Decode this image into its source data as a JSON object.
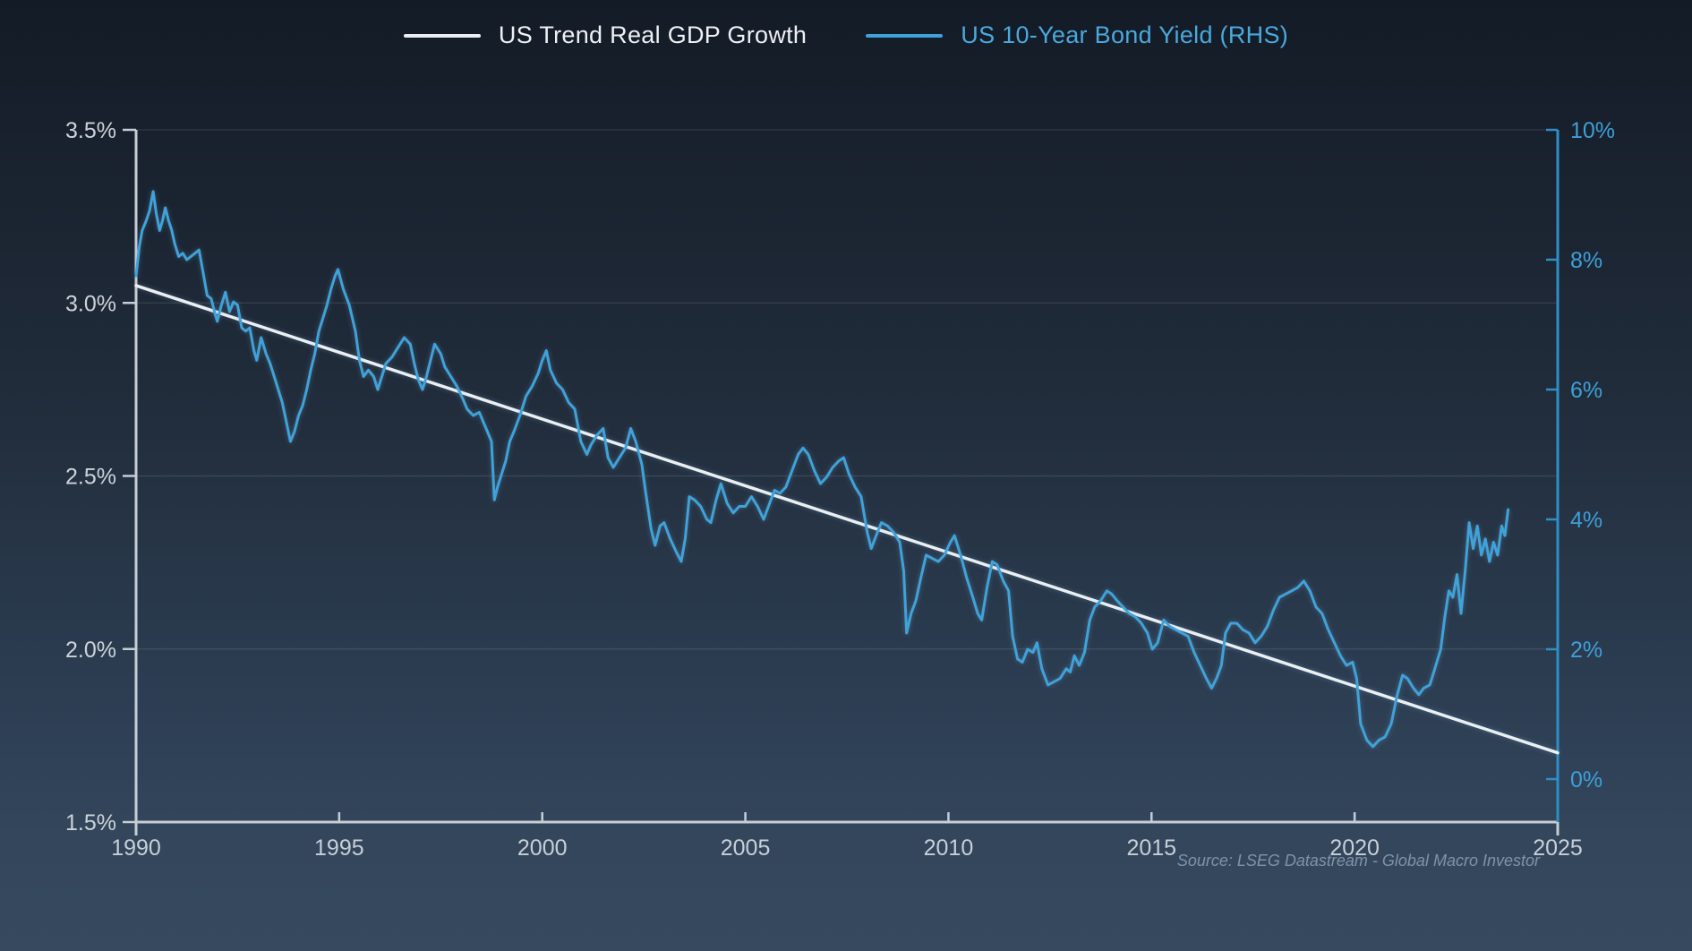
{
  "legend": {
    "items": [
      {
        "label": "US Trend Real GDP Growth",
        "color": "#eceff2",
        "text_color": "#eef1f4"
      },
      {
        "label": "US 10-Year Bond Yield (RHS)",
        "color": "#3fa2d9",
        "text_color": "#4aa8dd"
      }
    ]
  },
  "source_note": "Source: LSEG Datastream - Global Macro Investor",
  "colors": {
    "axis": "#c6cdd5",
    "right_axis": "#2e8ec6",
    "grid": "rgba(205,220,235,0.14)",
    "left_label": "#cdd3da",
    "x_label": "#c8cfd6",
    "right_label": "#3f9fd8",
    "source": "#7e93a9"
  },
  "chart_data": {
    "type": "line",
    "title": "",
    "xlabel": "",
    "ylabel_left": "",
    "ylabel_right": "",
    "grid": "horizontal",
    "legend_position": "top-center",
    "x_axis": {
      "range": [
        1990,
        2025
      ],
      "ticks": [
        1990,
        1995,
        2000,
        2005,
        2010,
        2015,
        2020,
        2025
      ]
    },
    "left_axis": {
      "range": [
        1.5,
        3.5
      ],
      "tick_values": [
        3.5,
        3.0,
        2.5,
        2.0,
        1.5
      ],
      "tick_labels": [
        "3.5%",
        "3.0%",
        "2.5%",
        "2.0%",
        "1.5%"
      ]
    },
    "right_axis": {
      "range": [
        0,
        10
      ],
      "tick_values": [
        10,
        8,
        6,
        4,
        2,
        0
      ],
      "tick_labels": [
        "10%",
        "8%",
        "6%",
        "4%",
        "2%",
        "0%"
      ]
    },
    "series": [
      {
        "name": "US Trend Real GDP Growth",
        "axis": "left",
        "color": "#eceff2",
        "width": 3.5,
        "points": [
          [
            1990,
            3.05
          ],
          [
            2025,
            1.7
          ]
        ]
      },
      {
        "name": "US 10-Year Bond Yield (RHS)",
        "axis": "right",
        "color": "#3fa2d9",
        "width": 3,
        "points": [
          [
            1990.0,
            7.75
          ],
          [
            1990.08,
            8.2
          ],
          [
            1990.15,
            8.45
          ],
          [
            1990.25,
            8.6
          ],
          [
            1990.33,
            8.75
          ],
          [
            1990.42,
            9.05
          ],
          [
            1990.5,
            8.7
          ],
          [
            1990.58,
            8.45
          ],
          [
            1990.65,
            8.6
          ],
          [
            1990.72,
            8.8
          ],
          [
            1990.8,
            8.6
          ],
          [
            1990.88,
            8.45
          ],
          [
            1990.95,
            8.25
          ],
          [
            1991.05,
            8.05
          ],
          [
            1991.15,
            8.1
          ],
          [
            1991.25,
            8.0
          ],
          [
            1991.35,
            8.05
          ],
          [
            1991.45,
            8.1
          ],
          [
            1991.55,
            8.15
          ],
          [
            1991.65,
            7.8
          ],
          [
            1991.75,
            7.45
          ],
          [
            1991.85,
            7.4
          ],
          [
            1991.95,
            7.15
          ],
          [
            1992.0,
            7.05
          ],
          [
            1992.1,
            7.3
          ],
          [
            1992.2,
            7.5
          ],
          [
            1992.3,
            7.2
          ],
          [
            1992.4,
            7.35
          ],
          [
            1992.5,
            7.3
          ],
          [
            1992.6,
            6.95
          ],
          [
            1992.7,
            6.9
          ],
          [
            1992.8,
            6.95
          ],
          [
            1992.9,
            6.6
          ],
          [
            1992.97,
            6.45
          ],
          [
            1993.08,
            6.8
          ],
          [
            1993.2,
            6.55
          ],
          [
            1993.3,
            6.4
          ],
          [
            1993.4,
            6.2
          ],
          [
            1993.5,
            6.0
          ],
          [
            1993.6,
            5.8
          ],
          [
            1993.7,
            5.5
          ],
          [
            1993.8,
            5.2
          ],
          [
            1993.9,
            5.35
          ],
          [
            1994.0,
            5.6
          ],
          [
            1994.1,
            5.75
          ],
          [
            1994.2,
            6.0
          ],
          [
            1994.3,
            6.3
          ],
          [
            1994.4,
            6.55
          ],
          [
            1994.5,
            6.9
          ],
          [
            1994.6,
            7.1
          ],
          [
            1994.7,
            7.3
          ],
          [
            1994.8,
            7.55
          ],
          [
            1994.9,
            7.75
          ],
          [
            1994.97,
            7.85
          ],
          [
            1995.1,
            7.55
          ],
          [
            1995.25,
            7.3
          ],
          [
            1995.4,
            6.9
          ],
          [
            1995.5,
            6.45
          ],
          [
            1995.6,
            6.2
          ],
          [
            1995.72,
            6.3
          ],
          [
            1995.85,
            6.2
          ],
          [
            1995.95,
            6.0
          ],
          [
            1996.05,
            6.2
          ],
          [
            1996.15,
            6.4
          ],
          [
            1996.3,
            6.5
          ],
          [
            1996.45,
            6.65
          ],
          [
            1996.6,
            6.8
          ],
          [
            1996.75,
            6.7
          ],
          [
            1996.85,
            6.4
          ],
          [
            1996.95,
            6.15
          ],
          [
            1997.05,
            6.0
          ],
          [
            1997.15,
            6.2
          ],
          [
            1997.25,
            6.45
          ],
          [
            1997.35,
            6.7
          ],
          [
            1997.5,
            6.55
          ],
          [
            1997.6,
            6.35
          ],
          [
            1997.75,
            6.2
          ],
          [
            1997.9,
            6.05
          ],
          [
            1998.05,
            5.85
          ],
          [
            1998.15,
            5.7
          ],
          [
            1998.3,
            5.6
          ],
          [
            1998.45,
            5.65
          ],
          [
            1998.55,
            5.5
          ],
          [
            1998.65,
            5.35
          ],
          [
            1998.75,
            5.2
          ],
          [
            1998.82,
            4.3
          ],
          [
            1998.9,
            4.5
          ],
          [
            1999.0,
            4.7
          ],
          [
            1999.1,
            4.9
          ],
          [
            1999.2,
            5.2
          ],
          [
            1999.3,
            5.35
          ],
          [
            1999.45,
            5.6
          ],
          [
            1999.6,
            5.9
          ],
          [
            1999.75,
            6.05
          ],
          [
            1999.9,
            6.25
          ],
          [
            2000.0,
            6.45
          ],
          [
            2000.1,
            6.6
          ],
          [
            2000.2,
            6.3
          ],
          [
            2000.35,
            6.1
          ],
          [
            2000.5,
            6.0
          ],
          [
            2000.65,
            5.8
          ],
          [
            2000.8,
            5.7
          ],
          [
            2000.95,
            5.2
          ],
          [
            2001.1,
            5.0
          ],
          [
            2001.2,
            5.15
          ],
          [
            2001.35,
            5.3
          ],
          [
            2001.5,
            5.4
          ],
          [
            2001.62,
            4.95
          ],
          [
            2001.75,
            4.8
          ],
          [
            2001.9,
            4.95
          ],
          [
            2002.05,
            5.1
          ],
          [
            2002.18,
            5.4
          ],
          [
            2002.3,
            5.2
          ],
          [
            2002.45,
            4.85
          ],
          [
            2002.55,
            4.4
          ],
          [
            2002.68,
            3.85
          ],
          [
            2002.78,
            3.6
          ],
          [
            2002.9,
            3.9
          ],
          [
            2003.0,
            3.95
          ],
          [
            2003.15,
            3.7
          ],
          [
            2003.3,
            3.5
          ],
          [
            2003.42,
            3.35
          ],
          [
            2003.52,
            3.7
          ],
          [
            2003.62,
            4.35
          ],
          [
            2003.75,
            4.3
          ],
          [
            2003.9,
            4.2
          ],
          [
            2004.05,
            4.0
          ],
          [
            2004.15,
            3.95
          ],
          [
            2004.28,
            4.3
          ],
          [
            2004.4,
            4.55
          ],
          [
            2004.55,
            4.25
          ],
          [
            2004.7,
            4.1
          ],
          [
            2004.85,
            4.2
          ],
          [
            2005.0,
            4.2
          ],
          [
            2005.15,
            4.35
          ],
          [
            2005.3,
            4.2
          ],
          [
            2005.45,
            4.0
          ],
          [
            2005.6,
            4.25
          ],
          [
            2005.72,
            4.45
          ],
          [
            2005.85,
            4.4
          ],
          [
            2006.0,
            4.5
          ],
          [
            2006.15,
            4.75
          ],
          [
            2006.3,
            5.0
          ],
          [
            2006.42,
            5.1
          ],
          [
            2006.55,
            5.0
          ],
          [
            2006.7,
            4.75
          ],
          [
            2006.85,
            4.55
          ],
          [
            2007.0,
            4.65
          ],
          [
            2007.15,
            4.8
          ],
          [
            2007.3,
            4.9
          ],
          [
            2007.42,
            4.95
          ],
          [
            2007.55,
            4.7
          ],
          [
            2007.7,
            4.5
          ],
          [
            2007.85,
            4.35
          ],
          [
            2008.0,
            3.8
          ],
          [
            2008.1,
            3.55
          ],
          [
            2008.22,
            3.75
          ],
          [
            2008.35,
            3.95
          ],
          [
            2008.5,
            3.9
          ],
          [
            2008.65,
            3.8
          ],
          [
            2008.8,
            3.65
          ],
          [
            2008.9,
            3.2
          ],
          [
            2008.97,
            2.25
          ],
          [
            2009.08,
            2.55
          ],
          [
            2009.2,
            2.75
          ],
          [
            2009.32,
            3.1
          ],
          [
            2009.45,
            3.45
          ],
          [
            2009.6,
            3.4
          ],
          [
            2009.75,
            3.35
          ],
          [
            2009.9,
            3.45
          ],
          [
            2010.05,
            3.65
          ],
          [
            2010.15,
            3.75
          ],
          [
            2010.3,
            3.45
          ],
          [
            2010.45,
            3.1
          ],
          [
            2010.6,
            2.8
          ],
          [
            2010.72,
            2.55
          ],
          [
            2010.82,
            2.45
          ],
          [
            2010.95,
            2.95
          ],
          [
            2011.08,
            3.35
          ],
          [
            2011.2,
            3.3
          ],
          [
            2011.35,
            3.05
          ],
          [
            2011.48,
            2.9
          ],
          [
            2011.58,
            2.2
          ],
          [
            2011.7,
            1.85
          ],
          [
            2011.82,
            1.8
          ],
          [
            2011.95,
            2.0
          ],
          [
            2012.08,
            1.95
          ],
          [
            2012.18,
            2.1
          ],
          [
            2012.3,
            1.7
          ],
          [
            2012.45,
            1.45
          ],
          [
            2012.6,
            1.5
          ],
          [
            2012.75,
            1.55
          ],
          [
            2012.9,
            1.7
          ],
          [
            2013.0,
            1.65
          ],
          [
            2013.1,
            1.9
          ],
          [
            2013.22,
            1.75
          ],
          [
            2013.35,
            1.95
          ],
          [
            2013.48,
            2.45
          ],
          [
            2013.6,
            2.65
          ],
          [
            2013.75,
            2.75
          ],
          [
            2013.9,
            2.9
          ],
          [
            2014.02,
            2.85
          ],
          [
            2014.15,
            2.75
          ],
          [
            2014.3,
            2.65
          ],
          [
            2014.45,
            2.55
          ],
          [
            2014.6,
            2.5
          ],
          [
            2014.75,
            2.4
          ],
          [
            2014.9,
            2.25
          ],
          [
            2015.02,
            2.0
          ],
          [
            2015.15,
            2.1
          ],
          [
            2015.3,
            2.45
          ],
          [
            2015.45,
            2.35
          ],
          [
            2015.6,
            2.3
          ],
          [
            2015.75,
            2.25
          ],
          [
            2015.9,
            2.2
          ],
          [
            2016.05,
            1.95
          ],
          [
            2016.2,
            1.75
          ],
          [
            2016.35,
            1.55
          ],
          [
            2016.48,
            1.4
          ],
          [
            2016.6,
            1.55
          ],
          [
            2016.72,
            1.75
          ],
          [
            2016.82,
            2.25
          ],
          [
            2016.95,
            2.4
          ],
          [
            2017.1,
            2.4
          ],
          [
            2017.25,
            2.3
          ],
          [
            2017.4,
            2.25
          ],
          [
            2017.55,
            2.1
          ],
          [
            2017.7,
            2.2
          ],
          [
            2017.85,
            2.35
          ],
          [
            2018.0,
            2.6
          ],
          [
            2018.15,
            2.8
          ],
          [
            2018.3,
            2.85
          ],
          [
            2018.45,
            2.9
          ],
          [
            2018.6,
            2.95
          ],
          [
            2018.75,
            3.05
          ],
          [
            2018.9,
            2.9
          ],
          [
            2019.05,
            2.65
          ],
          [
            2019.2,
            2.55
          ],
          [
            2019.35,
            2.3
          ],
          [
            2019.5,
            2.1
          ],
          [
            2019.65,
            1.9
          ],
          [
            2019.8,
            1.75
          ],
          [
            2019.95,
            1.8
          ],
          [
            2020.05,
            1.55
          ],
          [
            2020.15,
            0.85
          ],
          [
            2020.3,
            0.6
          ],
          [
            2020.45,
            0.5
          ],
          [
            2020.6,
            0.6
          ],
          [
            2020.75,
            0.65
          ],
          [
            2020.9,
            0.85
          ],
          [
            2021.05,
            1.3
          ],
          [
            2021.18,
            1.6
          ],
          [
            2021.3,
            1.55
          ],
          [
            2021.45,
            1.4
          ],
          [
            2021.58,
            1.3
          ],
          [
            2021.7,
            1.4
          ],
          [
            2021.85,
            1.45
          ],
          [
            2022.0,
            1.75
          ],
          [
            2022.12,
            2.0
          ],
          [
            2022.22,
            2.5
          ],
          [
            2022.32,
            2.9
          ],
          [
            2022.42,
            2.8
          ],
          [
            2022.52,
            3.15
          ],
          [
            2022.62,
            2.55
          ],
          [
            2022.72,
            3.2
          ],
          [
            2022.82,
            3.95
          ],
          [
            2022.92,
            3.55
          ],
          [
            2023.02,
            3.9
          ],
          [
            2023.12,
            3.45
          ],
          [
            2023.22,
            3.7
          ],
          [
            2023.32,
            3.35
          ],
          [
            2023.42,
            3.65
          ],
          [
            2023.52,
            3.45
          ],
          [
            2023.62,
            3.9
          ],
          [
            2023.7,
            3.75
          ],
          [
            2023.78,
            4.15
          ]
        ]
      }
    ],
    "source": "Source: LSEG Datastream - Global Macro Investor"
  }
}
